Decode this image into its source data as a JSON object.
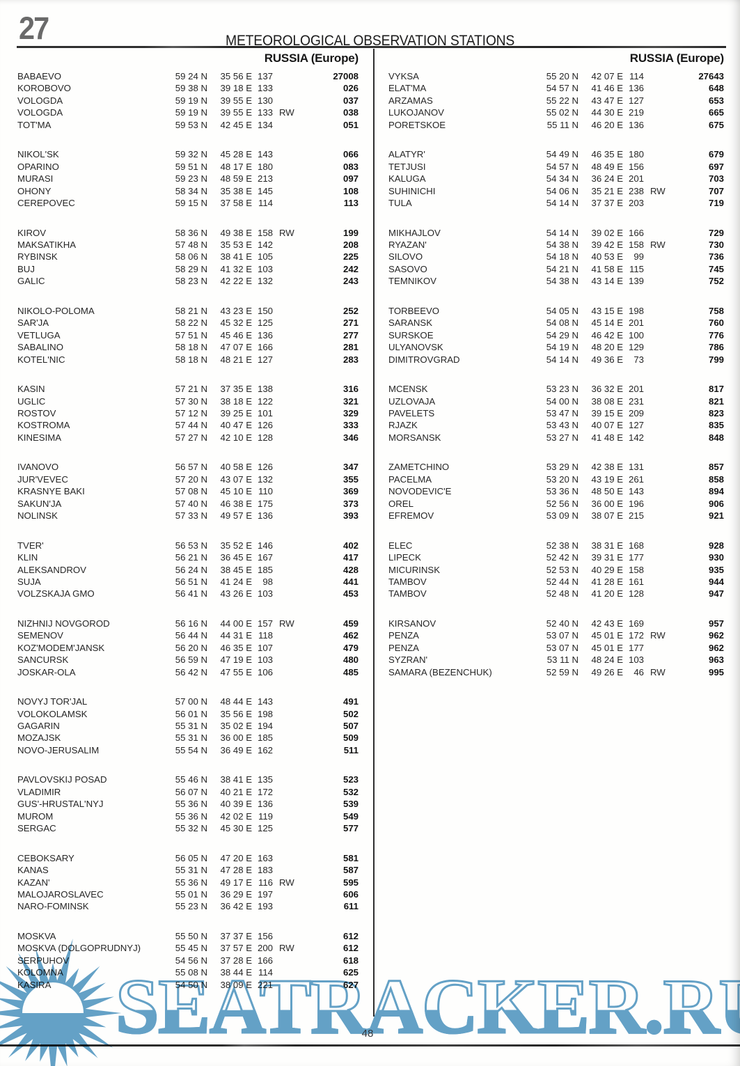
{
  "header": {
    "page_ref": "27",
    "title": "METEOROLOGICAL OBSERVATION STATIONS"
  },
  "columns": [
    {
      "region": "RUSSIA (Europe)",
      "groups": [
        [
          {
            "name": "BABAEVO",
            "lat": "59 24 N",
            "lon": "35 56 E",
            "elev": "137",
            "rw": "",
            "num": "27008"
          },
          {
            "name": "KOROBOVO",
            "lat": "59 38 N",
            "lon": "39 18 E",
            "elev": "133",
            "rw": "",
            "num": "026"
          },
          {
            "name": "VOLOGDA",
            "lat": "59 19 N",
            "lon": "39 55 E",
            "elev": "130",
            "rw": "",
            "num": "037"
          },
          {
            "name": "VOLOGDA",
            "lat": "59 19 N",
            "lon": "39 55 E",
            "elev": "133",
            "rw": "RW",
            "num": "038"
          },
          {
            "name": "TOT'MA",
            "lat": "59 53 N",
            "lon": "42 45 E",
            "elev": "134",
            "rw": "",
            "num": "051"
          }
        ],
        [
          {
            "name": "NIKOL'SK",
            "lat": "59 32 N",
            "lon": "45 28 E",
            "elev": "143",
            "rw": "",
            "num": "066"
          },
          {
            "name": "OPARINO",
            "lat": "59 51 N",
            "lon": "48 17 E",
            "elev": "180",
            "rw": "",
            "num": "083"
          },
          {
            "name": "MURASI",
            "lat": "59 23 N",
            "lon": "48 59 E",
            "elev": "213",
            "rw": "",
            "num": "097"
          },
          {
            "name": "OHONY",
            "lat": "58 34 N",
            "lon": "35 38 E",
            "elev": "145",
            "rw": "",
            "num": "108"
          },
          {
            "name": "CEREPOVEC",
            "lat": "59 15 N",
            "lon": "37 58 E",
            "elev": "114",
            "rw": "",
            "num": "113"
          }
        ],
        [
          {
            "name": "KIROV",
            "lat": "58 36 N",
            "lon": "49 38 E",
            "elev": "158",
            "rw": "RW",
            "num": "199"
          },
          {
            "name": "MAKSATIKHA",
            "lat": "57 48 N",
            "lon": "35 53 E",
            "elev": "142",
            "rw": "",
            "num": "208"
          },
          {
            "name": "RYBINSK",
            "lat": "58 06 N",
            "lon": "38 41 E",
            "elev": "105",
            "rw": "",
            "num": "225"
          },
          {
            "name": "BUJ",
            "lat": "58 29 N",
            "lon": "41 32 E",
            "elev": "103",
            "rw": "",
            "num": "242"
          },
          {
            "name": "GALIC",
            "lat": "58 23 N",
            "lon": "42 22 E",
            "elev": "132",
            "rw": "",
            "num": "243"
          }
        ],
        [
          {
            "name": "NIKOLO-POLOMA",
            "lat": "58 21 N",
            "lon": "43 23 E",
            "elev": "150",
            "rw": "",
            "num": "252"
          },
          {
            "name": "SAR'JA",
            "lat": "58 22 N",
            "lon": "45 32 E",
            "elev": "125",
            "rw": "",
            "num": "271"
          },
          {
            "name": "VETLUGA",
            "lat": "57 51 N",
            "lon": "45 46 E",
            "elev": "136",
            "rw": "",
            "num": "277"
          },
          {
            "name": "SABALINO",
            "lat": "58 18 N",
            "lon": "47 07 E",
            "elev": "166",
            "rw": "",
            "num": "281"
          },
          {
            "name": "KOTEL'NIC",
            "lat": "58 18 N",
            "lon": "48 21 E",
            "elev": "127",
            "rw": "",
            "num": "283"
          }
        ],
        [
          {
            "name": "KASIN",
            "lat": "57 21 N",
            "lon": "37 35 E",
            "elev": "138",
            "rw": "",
            "num": "316"
          },
          {
            "name": "UGLIC",
            "lat": "57 30 N",
            "lon": "38 18 E",
            "elev": "122",
            "rw": "",
            "num": "321"
          },
          {
            "name": "ROSTOV",
            "lat": "57 12 N",
            "lon": "39 25 E",
            "elev": "101",
            "rw": "",
            "num": "329"
          },
          {
            "name": "KOSTROMA",
            "lat": "57 44 N",
            "lon": "40 47 E",
            "elev": "126",
            "rw": "",
            "num": "333"
          },
          {
            "name": "KINESIMA",
            "lat": "57 27 N",
            "lon": "42 10 E",
            "elev": "128",
            "rw": "",
            "num": "346"
          }
        ],
        [
          {
            "name": "IVANOVO",
            "lat": "56 57 N",
            "lon": "40 58 E",
            "elev": "126",
            "rw": "",
            "num": "347"
          },
          {
            "name": "JUR'VEVEC",
            "lat": "57 20 N",
            "lon": "43 07 E",
            "elev": "132",
            "rw": "",
            "num": "355"
          },
          {
            "name": "KRASNYE BAKI",
            "lat": "57 08 N",
            "lon": "45 10 E",
            "elev": "110",
            "rw": "",
            "num": "369"
          },
          {
            "name": "SAKUN'JA",
            "lat": "57 40 N",
            "lon": "46 38 E",
            "elev": "175",
            "rw": "",
            "num": "373"
          },
          {
            "name": "NOLINSK",
            "lat": "57 33 N",
            "lon": "49 57 E",
            "elev": "136",
            "rw": "",
            "num": "393"
          }
        ],
        [
          {
            "name": "TVER'",
            "lat": "56 53 N",
            "lon": "35 52 E",
            "elev": "146",
            "rw": "",
            "num": "402"
          },
          {
            "name": "KLIN",
            "lat": "56 21 N",
            "lon": "36 45 E",
            "elev": "167",
            "rw": "",
            "num": "417"
          },
          {
            "name": "ALEKSANDROV",
            "lat": "56 24 N",
            "lon": "38 45 E",
            "elev": "185",
            "rw": "",
            "num": "428"
          },
          {
            "name": "SUJA",
            "lat": "56 51 N",
            "lon": "41 24 E",
            "elev": "98",
            "rw": "",
            "num": "441"
          },
          {
            "name": "VOLZSKAJA GMO",
            "lat": "56 41 N",
            "lon": "43 26 E",
            "elev": "103",
            "rw": "",
            "num": "453"
          }
        ],
        [
          {
            "name": "NIZHNIJ NOVGOROD",
            "lat": "56 16 N",
            "lon": "44 00 E",
            "elev": "157",
            "rw": "RW",
            "num": "459"
          },
          {
            "name": "SEMENOV",
            "lat": "56 44 N",
            "lon": "44 31 E",
            "elev": "118",
            "rw": "",
            "num": "462"
          },
          {
            "name": "KOZ'MODEM'JANSK",
            "lat": "56 20 N",
            "lon": "46 35 E",
            "elev": "107",
            "rw": "",
            "num": "479"
          },
          {
            "name": "SANCURSK",
            "lat": "56 59 N",
            "lon": "47 19 E",
            "elev": "103",
            "rw": "",
            "num": "480"
          },
          {
            "name": "JOSKAR-OLA",
            "lat": "56 42 N",
            "lon": "47 55 E",
            "elev": "106",
            "rw": "",
            "num": "485"
          }
        ],
        [
          {
            "name": "NOVYJ TOR'JAL",
            "lat": "57 00 N",
            "lon": "48 44 E",
            "elev": "143",
            "rw": "",
            "num": "491"
          },
          {
            "name": "VOLOKOLAMSK",
            "lat": "56 01 N",
            "lon": "35 56 E",
            "elev": "198",
            "rw": "",
            "num": "502"
          },
          {
            "name": "GAGARIN",
            "lat": "55 31 N",
            "lon": "35 02 E",
            "elev": "194",
            "rw": "",
            "num": "507"
          },
          {
            "name": "MOZAJSK",
            "lat": "55 31 N",
            "lon": "36 00 E",
            "elev": "185",
            "rw": "",
            "num": "509"
          },
          {
            "name": "NOVO-JERUSALIM",
            "lat": "55 54 N",
            "lon": "36 49 E",
            "elev": "162",
            "rw": "",
            "num": "511"
          }
        ],
        [
          {
            "name": "PAVLOVSKIJ POSAD",
            "lat": "55 46 N",
            "lon": "38 41 E",
            "elev": "135",
            "rw": "",
            "num": "523"
          },
          {
            "name": "VLADIMIR",
            "lat": "56 07 N",
            "lon": "40 21 E",
            "elev": "172",
            "rw": "",
            "num": "532"
          },
          {
            "name": "GUS'-HRUSTAL'NYJ",
            "lat": "55 36 N",
            "lon": "40 39 E",
            "elev": "136",
            "rw": "",
            "num": "539"
          },
          {
            "name": "MUROM",
            "lat": "55 36 N",
            "lon": "42 02 E",
            "elev": "119",
            "rw": "",
            "num": "549"
          },
          {
            "name": "SERGAC",
            "lat": "55 32 N",
            "lon": "45 30 E",
            "elev": "125",
            "rw": "",
            "num": "577"
          }
        ],
        [
          {
            "name": "CEBOKSARY",
            "lat": "56 05 N",
            "lon": "47 20 E",
            "elev": "163",
            "rw": "",
            "num": "581"
          },
          {
            "name": "KANAS",
            "lat": "55 31 N",
            "lon": "47 28 E",
            "elev": "183",
            "rw": "",
            "num": "587"
          },
          {
            "name": "KAZAN'",
            "lat": "55 36 N",
            "lon": "49 17 E",
            "elev": "116",
            "rw": "RW",
            "num": "595"
          },
          {
            "name": "MALOJAROSLAVEC",
            "lat": "55 01 N",
            "lon": "36 29 E",
            "elev": "197",
            "rw": "",
            "num": "606"
          },
          {
            "name": "NARO-FOMINSK",
            "lat": "55 23 N",
            "lon": "36 42 E",
            "elev": "193",
            "rw": "",
            "num": "611"
          }
        ],
        [
          {
            "name": "MOSKVA",
            "lat": "55 50 N",
            "lon": "37 37 E",
            "elev": "156",
            "rw": "",
            "num": "612"
          },
          {
            "name": "MOSKVA (DOLGOPRUDNYJ)",
            "lat": "55 45 N",
            "lon": "37 57 E",
            "elev": "200",
            "rw": "RW",
            "num": "612"
          },
          {
            "name": "SERPUHOV",
            "lat": "54 56 N",
            "lon": "37 28 E",
            "elev": "166",
            "rw": "",
            "num": "618"
          },
          {
            "name": "KOLOMNA",
            "lat": "55 08 N",
            "lon": "38 44 E",
            "elev": "114",
            "rw": "",
            "num": "625"
          },
          {
            "name": "KASIRA",
            "lat": "54 50 N",
            "lon": "38 09 E",
            "elev": "221",
            "rw": "",
            "num": "627"
          }
        ]
      ]
    },
    {
      "region": "RUSSIA (Europe)",
      "groups": [
        [
          {
            "name": "VYKSA",
            "lat": "55 20 N",
            "lon": "42 07 E",
            "elev": "114",
            "rw": "",
            "num": "27643"
          },
          {
            "name": "ELAT'MA",
            "lat": "54 57 N",
            "lon": "41 46 E",
            "elev": "136",
            "rw": "",
            "num": "648"
          },
          {
            "name": "ARZAMAS",
            "lat": "55 22 N",
            "lon": "43 47 E",
            "elev": "127",
            "rw": "",
            "num": "653"
          },
          {
            "name": "LUKOJANOV",
            "lat": "55 02 N",
            "lon": "44 30 E",
            "elev": "219",
            "rw": "",
            "num": "665"
          },
          {
            "name": "PORETSKOE",
            "lat": "55 11 N",
            "lon": "46 20 E",
            "elev": "136",
            "rw": "",
            "num": "675"
          }
        ],
        [
          {
            "name": "ALATYR'",
            "lat": "54 49 N",
            "lon": "46 35 E",
            "elev": "180",
            "rw": "",
            "num": "679"
          },
          {
            "name": "TETJUSI",
            "lat": "54 57 N",
            "lon": "48 49 E",
            "elev": "156",
            "rw": "",
            "num": "697"
          },
          {
            "name": "KALUGA",
            "lat": "54 34 N",
            "lon": "36 24 E",
            "elev": "201",
            "rw": "",
            "num": "703"
          },
          {
            "name": "SUHINICHI",
            "lat": "54 06 N",
            "lon": "35 21 E",
            "elev": "238",
            "rw": "RW",
            "num": "707"
          },
          {
            "name": "TULA",
            "lat": "54 14 N",
            "lon": "37 37 E",
            "elev": "203",
            "rw": "",
            "num": "719"
          }
        ],
        [
          {
            "name": "MIKHAJLOV",
            "lat": "54 14 N",
            "lon": "39 02 E",
            "elev": "166",
            "rw": "",
            "num": "729"
          },
          {
            "name": "RYAZAN'",
            "lat": "54 38 N",
            "lon": "39 42 E",
            "elev": "158",
            "rw": "RW",
            "num": "730"
          },
          {
            "name": "SILOVO",
            "lat": "54 18 N",
            "lon": "40 53 E",
            "elev": "99",
            "rw": "",
            "num": "736"
          },
          {
            "name": "SASOVO",
            "lat": "54 21 N",
            "lon": "41 58 E",
            "elev": "115",
            "rw": "",
            "num": "745"
          },
          {
            "name": "TEMNIKOV",
            "lat": "54 38 N",
            "lon": "43 14 E",
            "elev": "139",
            "rw": "",
            "num": "752"
          }
        ],
        [
          {
            "name": "TORBEEVO",
            "lat": "54 05 N",
            "lon": "43 15 E",
            "elev": "198",
            "rw": "",
            "num": "758"
          },
          {
            "name": "SARANSK",
            "lat": "54 08 N",
            "lon": "45 14 E",
            "elev": "201",
            "rw": "",
            "num": "760"
          },
          {
            "name": "SURSKOE",
            "lat": "54 29 N",
            "lon": "46 42 E",
            "elev": "100",
            "rw": "",
            "num": "776"
          },
          {
            "name": "ULYANOVSK",
            "lat": "54 19 N",
            "lon": "48 20 E",
            "elev": "129",
            "rw": "",
            "num": "786"
          },
          {
            "name": "DIMITROVGRAD",
            "lat": "54 14 N",
            "lon": "49 36 E",
            "elev": "73",
            "rw": "",
            "num": "799"
          }
        ],
        [
          {
            "name": "MCENSK",
            "lat": "53 23 N",
            "lon": "36 32 E",
            "elev": "201",
            "rw": "",
            "num": "817"
          },
          {
            "name": "UZLOVAJA",
            "lat": "54 00 N",
            "lon": "38 08 E",
            "elev": "231",
            "rw": "",
            "num": "821"
          },
          {
            "name": "PAVELETS",
            "lat": "53 47 N",
            "lon": "39 15 E",
            "elev": "209",
            "rw": "",
            "num": "823"
          },
          {
            "name": "RJAZK",
            "lat": "53 43 N",
            "lon": "40 07 E",
            "elev": "127",
            "rw": "",
            "num": "835"
          },
          {
            "name": "MORSANSK",
            "lat": "53 27 N",
            "lon": "41 48 E",
            "elev": "142",
            "rw": "",
            "num": "848"
          }
        ],
        [
          {
            "name": "ZAMETCHINO",
            "lat": "53 29 N",
            "lon": "42 38 E",
            "elev": "131",
            "rw": "",
            "num": "857"
          },
          {
            "name": "PACELMA",
            "lat": "53 20 N",
            "lon": "43 19 E",
            "elev": "261",
            "rw": "",
            "num": "858"
          },
          {
            "name": "NOVODEVIC'E",
            "lat": "53 36 N",
            "lon": "48 50 E",
            "elev": "143",
            "rw": "",
            "num": "894"
          },
          {
            "name": "OREL",
            "lat": "52 56 N",
            "lon": "36 00 E",
            "elev": "196",
            "rw": "",
            "num": "906"
          },
          {
            "name": "EFREMOV",
            "lat": "53 09 N",
            "lon": "38 07 E",
            "elev": "215",
            "rw": "",
            "num": "921"
          }
        ],
        [
          {
            "name": "ELEC",
            "lat": "52 38 N",
            "lon": "38 31 E",
            "elev": "168",
            "rw": "",
            "num": "928"
          },
          {
            "name": "LIPECK",
            "lat": "52 42 N",
            "lon": "39 31 E",
            "elev": "177",
            "rw": "",
            "num": "930"
          },
          {
            "name": "MICURINSK",
            "lat": "52 53 N",
            "lon": "40 29 E",
            "elev": "158",
            "rw": "",
            "num": "935"
          },
          {
            "name": "TAMBOV",
            "lat": "52 44 N",
            "lon": "41 28 E",
            "elev": "161",
            "rw": "",
            "num": "944"
          },
          {
            "name": "TAMBOV",
            "lat": "52 48 N",
            "lon": "41 20 E",
            "elev": "128",
            "rw": "",
            "num": "947"
          }
        ],
        [
          {
            "name": "KIRSANOV",
            "lat": "52 40 N",
            "lon": "42 43 E",
            "elev": "169",
            "rw": "",
            "num": "957"
          },
          {
            "name": "PENZA",
            "lat": "53 07 N",
            "lon": "45 01 E",
            "elev": "172",
            "rw": "RW",
            "num": "962"
          },
          {
            "name": "PENZA",
            "lat": "53 07 N",
            "lon": "45 01 E",
            "elev": "177",
            "rw": "",
            "num": "962"
          },
          {
            "name": "SYZRAN'",
            "lat": "53 11 N",
            "lon": "48 24 E",
            "elev": "103",
            "rw": "",
            "num": "963"
          },
          {
            "name": "SAMARA (BEZENCHUK)",
            "lat": "52 59 N",
            "lon": "49 26 E",
            "elev": "46",
            "rw": "RW",
            "num": "995"
          }
        ]
      ]
    }
  ],
  "footer": {
    "page_number": "48"
  },
  "watermark": {
    "text": "SEATRACKER.RU",
    "color": "#64a2c8"
  }
}
